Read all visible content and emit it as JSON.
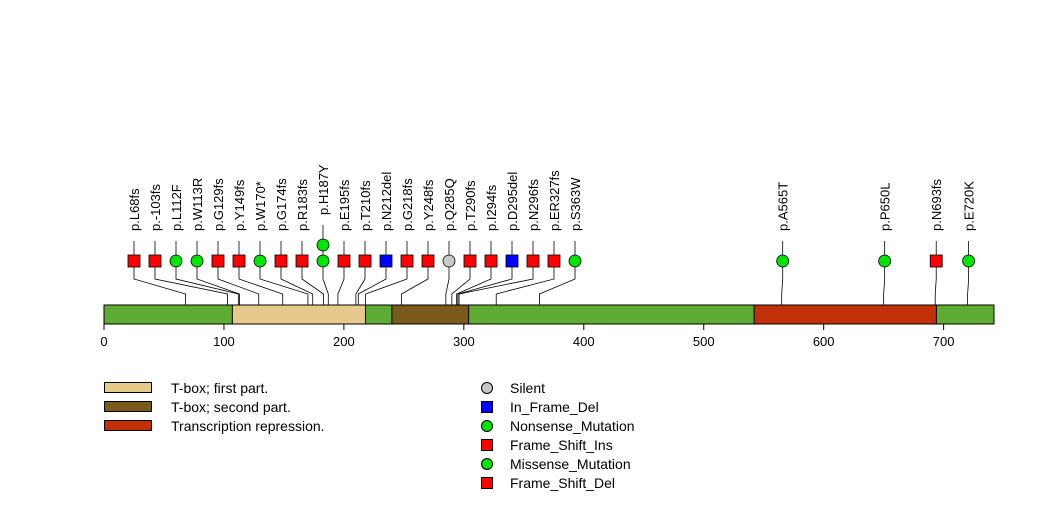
{
  "chart_data": {
    "type": "lollipop",
    "protein_length": 742,
    "xlim": [
      0,
      742
    ],
    "x_ticks": [
      0,
      100,
      200,
      300,
      400,
      500,
      600,
      700
    ],
    "colors": {
      "backbone": "#5fac35",
      "t_box_first": "#e6c98b",
      "t_box_second": "#7a5a1a",
      "transcription_repression": "#c2300a",
      "silent": "#c8c8c8",
      "in_frame_del": "#0000ff",
      "nonsense": "#00e400",
      "frame_shift": "#ff0000",
      "missense": "#00e400"
    },
    "domains": [
      {
        "name": "T-box; first part.",
        "start": 107,
        "end": 218,
        "color_key": "t_box_first"
      },
      {
        "name": "T-box; second part.",
        "start": 240,
        "end": 304,
        "color_key": "t_box_second"
      },
      {
        "name": "Transcription repression.",
        "start": 542,
        "end": 694,
        "color_key": "transcription_repression"
      }
    ],
    "mutations": [
      {
        "label": "p.L68fs",
        "position": 68,
        "type": "Frame_Shift_Del",
        "count": 1
      },
      {
        "label": "p.-103fs",
        "position": 103,
        "type": "Frame_Shift_Del",
        "count": 1
      },
      {
        "label": "p.L112F",
        "position": 112,
        "type": "Missense_Mutation",
        "count": 1
      },
      {
        "label": "p.W113R",
        "position": 113,
        "type": "Missense_Mutation",
        "count": 1
      },
      {
        "label": "p.G129fs",
        "position": 129,
        "type": "Frame_Shift_Del",
        "count": 1
      },
      {
        "label": "p.Y149fs",
        "position": 149,
        "type": "Frame_Shift_Del",
        "count": 1
      },
      {
        "label": "p.W170*",
        "position": 170,
        "type": "Nonsense_Mutation",
        "count": 1
      },
      {
        "label": "p.G174fs",
        "position": 174,
        "type": "Frame_Shift_Del",
        "count": 1
      },
      {
        "label": "p.R183fs",
        "position": 183,
        "type": "Frame_Shift_Del",
        "count": 1
      },
      {
        "label": "p.H187Y",
        "position": 187,
        "type": "Missense_Mutation",
        "count": 2
      },
      {
        "label": "p.E195fs",
        "position": 195,
        "type": "Frame_Shift_Del",
        "count": 1
      },
      {
        "label": "p.T210fs",
        "position": 210,
        "type": "Frame_Shift_Del",
        "count": 1
      },
      {
        "label": "p.N212del",
        "position": 212,
        "type": "In_Frame_Del",
        "count": 1
      },
      {
        "label": "p.G218fs",
        "position": 218,
        "type": "Frame_Shift_Del",
        "count": 1
      },
      {
        "label": "p.Y248fs",
        "position": 248,
        "type": "Frame_Shift_Del",
        "count": 1
      },
      {
        "label": "p.Q285Q",
        "position": 285,
        "type": "Silent",
        "count": 1
      },
      {
        "label": "p.T290fs",
        "position": 290,
        "type": "Frame_Shift_Del",
        "count": 1
      },
      {
        "label": "p.I294fs",
        "position": 294,
        "type": "Frame_Shift_Del",
        "count": 1
      },
      {
        "label": "p.D295del",
        "position": 295,
        "type": "In_Frame_Del",
        "count": 1
      },
      {
        "label": "p.N296fs",
        "position": 296,
        "type": "Frame_Shift_Del",
        "count": 1
      },
      {
        "label": "p.ER327fs",
        "position": 327,
        "type": "Frame_Shift_Del",
        "count": 1
      },
      {
        "label": "p.S363W",
        "position": 363,
        "type": "Missense_Mutation",
        "count": 1
      },
      {
        "label": "p.A565T",
        "position": 565,
        "type": "Missense_Mutation",
        "count": 1
      },
      {
        "label": "p.P650L",
        "position": 650,
        "type": "Missense_Mutation",
        "count": 1
      },
      {
        "label": "p.N693fs",
        "position": 693,
        "type": "Frame_Shift_Del",
        "count": 1
      },
      {
        "label": "p.E720K",
        "position": 720,
        "type": "Missense_Mutation",
        "count": 1
      }
    ]
  },
  "legend": {
    "domains": [
      {
        "label": "T-box; first part.",
        "color": "#e6c98b"
      },
      {
        "label": "T-box; second part.",
        "color": "#7a5a1a"
      },
      {
        "label": "Transcription repression.",
        "color": "#c2300a"
      }
    ],
    "mutation_types": [
      {
        "label": "Silent",
        "shape": "circle",
        "color": "#c8c8c8"
      },
      {
        "label": "In_Frame_Del",
        "shape": "square",
        "color": "#0000ff"
      },
      {
        "label": "Nonsense_Mutation",
        "shape": "circle",
        "color": "#00e400"
      },
      {
        "label": "Frame_Shift_Ins",
        "shape": "square",
        "color": "#ff0000"
      },
      {
        "label": "Missense_Mutation",
        "shape": "circle",
        "color": "#00e400"
      },
      {
        "label": "Frame_Shift_Del",
        "shape": "square",
        "color": "#ff0000"
      }
    ]
  }
}
